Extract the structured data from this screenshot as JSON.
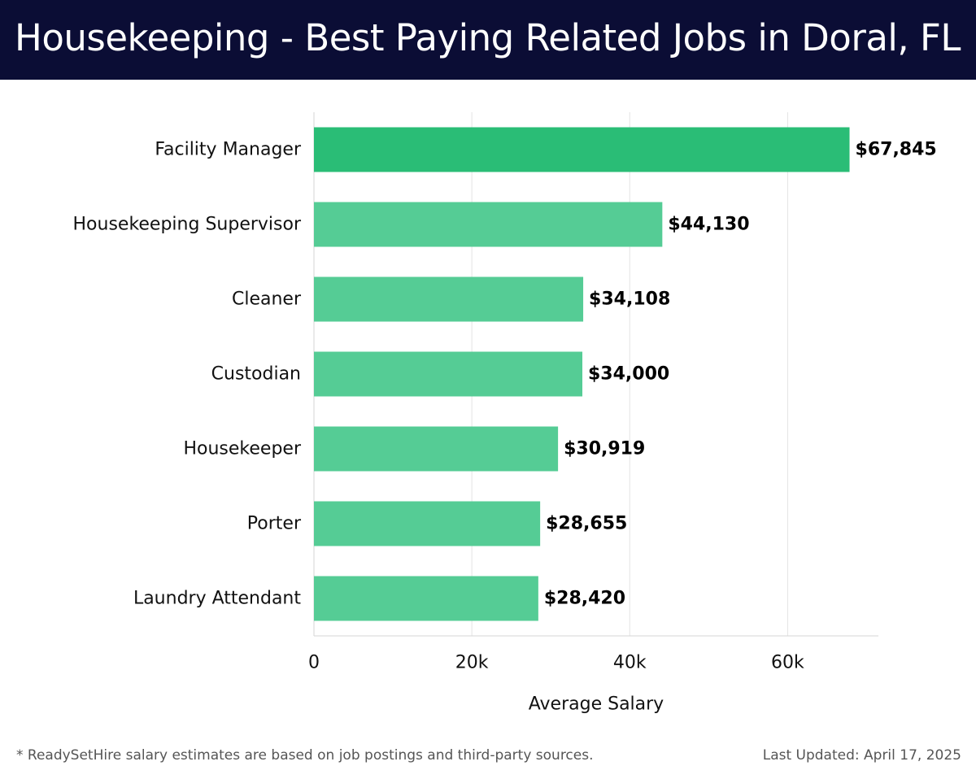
{
  "header": {
    "title": "Housekeeping - Best Paying Related Jobs in Doral, FL"
  },
  "chart_data": {
    "type": "bar",
    "orientation": "horizontal",
    "title": "Housekeeping - Best Paying Related Jobs in Doral, FL",
    "xlabel": "Average Salary",
    "ylabel": "",
    "categories": [
      "Facility Manager",
      "Housekeeping Supervisor",
      "Cleaner",
      "Custodian",
      "Housekeeper",
      "Porter",
      "Laundry Attendant"
    ],
    "values": [
      67845,
      44130,
      34108,
      34000,
      30919,
      28655,
      28420
    ],
    "value_labels": [
      "$67,845",
      "$44,130",
      "$34,108",
      "$34,000",
      "$30,919",
      "$28,655",
      "$28,420"
    ],
    "xlim": [
      0,
      71500
    ],
    "x_ticks": [
      0,
      20000,
      40000,
      60000
    ],
    "x_tick_labels": [
      "0",
      "20k",
      "40k",
      "60k"
    ],
    "grid": true,
    "colors": {
      "highlight": "#2abd76",
      "bar": "#55cc95"
    }
  },
  "footer": {
    "note": "* ReadySetHire salary estimates are based on job postings and third-party sources.",
    "updated": "Last Updated: April 17, 2025"
  }
}
